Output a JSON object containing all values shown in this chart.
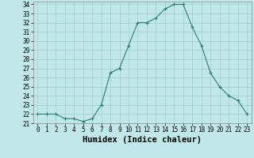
{
  "x": [
    0,
    1,
    2,
    3,
    4,
    5,
    6,
    7,
    8,
    9,
    10,
    11,
    12,
    13,
    14,
    15,
    16,
    17,
    18,
    19,
    20,
    21,
    22,
    23
  ],
  "y": [
    22.0,
    22.0,
    22.0,
    21.5,
    21.5,
    21.2,
    21.5,
    23.0,
    26.5,
    27.0,
    29.5,
    32.0,
    32.0,
    32.5,
    33.5,
    34.0,
    34.0,
    31.5,
    29.5,
    26.5,
    25.0,
    24.0,
    23.5,
    22.0
  ],
  "xlabel": "Humidex (Indice chaleur)",
  "ylim": [
    21,
    34
  ],
  "xlim": [
    -0.5,
    23.5
  ],
  "yticks": [
    21,
    22,
    23,
    24,
    25,
    26,
    27,
    28,
    29,
    30,
    31,
    32,
    33,
    34
  ],
  "xticks": [
    0,
    1,
    2,
    3,
    4,
    5,
    6,
    7,
    8,
    9,
    10,
    11,
    12,
    13,
    14,
    15,
    16,
    17,
    18,
    19,
    20,
    21,
    22,
    23
  ],
  "line_color": "#2d7d6e",
  "marker": "+",
  "bg_color": "#c0e8e8",
  "grid_color": "#a0cccc",
  "tick_fontsize": 5.5,
  "xlabel_fontsize": 7.5
}
